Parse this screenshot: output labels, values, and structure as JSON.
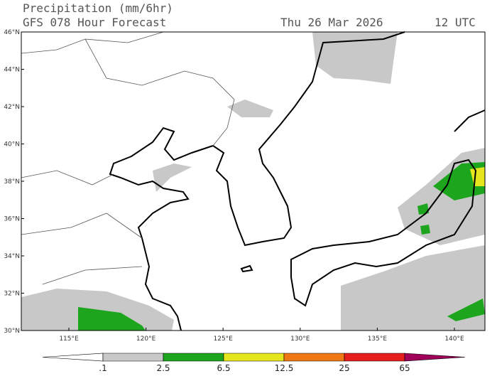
{
  "header": {
    "title": "Precipitation (mm/6hr)",
    "subtitle": "GFS 078 Hour Forecast",
    "date": "Thu 26 Mar 2026",
    "time": "12 UTC"
  },
  "lat_labels": [
    "30°N",
    "32°N",
    "34°N",
    "36°N",
    "38°N",
    "40°N",
    "42°N",
    "44°N",
    "46°N"
  ],
  "lon_labels": [
    "115°E",
    "120°E",
    "125°E",
    "130°E",
    "135°E",
    "140°E"
  ],
  "colorbar": {
    "labels": [
      ".1",
      "2.5",
      "6.5",
      "12.5",
      "25",
      "65"
    ],
    "colors": [
      "#ffffff",
      "#c8c8c8",
      "#1ea51e",
      "#e6e61e",
      "#f07814",
      "#e61e1e",
      "#a0005a"
    ]
  }
}
